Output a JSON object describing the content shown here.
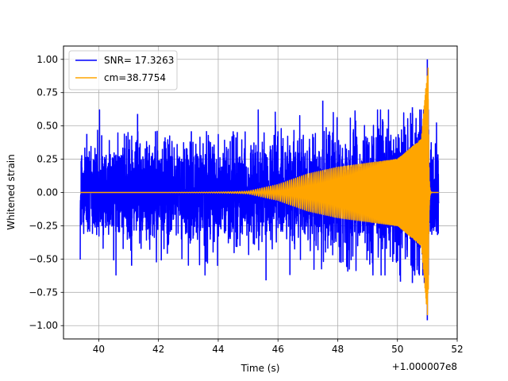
{
  "chart_data": {
    "type": "line",
    "xlabel": "Time (s)",
    "ylabel": "Whitened strain",
    "x_offset_label": "+1.000007e8",
    "xlim": [
      38.82,
      52.0
    ],
    "ylim": [
      -1.1,
      1.1
    ],
    "xticks": [
      40,
      42,
      44,
      46,
      48,
      50,
      52
    ],
    "yticks": [
      -1.0,
      -0.75,
      -0.5,
      -0.25,
      0.0,
      0.25,
      0.5,
      0.75,
      1.0
    ],
    "ytick_labels": [
      "−1.00",
      "−0.75",
      "−0.50",
      "−0.25",
      "0.00",
      "0.25",
      "0.50",
      "0.75",
      "1.00"
    ],
    "grid": true,
    "legend_position": "upper-left",
    "series": [
      {
        "name": "SNR= 17.3263",
        "color": "#0000ff",
        "x_range": [
          39.38,
          51.38
        ],
        "noise_amplitude": 0.33,
        "peaks": [
          {
            "x": 39.6,
            "y": 0.44
          },
          {
            "x": 40.1,
            "y": 0.43
          },
          {
            "x": 41.3,
            "y": 0.59
          },
          {
            "x": 41.9,
            "y": 0.46
          },
          {
            "x": 43.1,
            "y": 0.46
          },
          {
            "x": 44.5,
            "y": 0.46
          },
          {
            "x": 46.0,
            "y": 0.46
          },
          {
            "x": 47.5,
            "y": 0.69
          },
          {
            "x": 48.6,
            "y": 0.54
          },
          {
            "x": 49.5,
            "y": 0.55
          },
          {
            "x": 50.5,
            "y": 0.64
          },
          {
            "x": 51.0,
            "y": 1.0
          }
        ],
        "troughs": [
          {
            "x": 40.5,
            "y": -0.51
          },
          {
            "x": 41.1,
            "y": -0.55
          },
          {
            "x": 43.6,
            "y": -0.52
          },
          {
            "x": 45.6,
            "y": -0.66
          },
          {
            "x": 46.4,
            "y": -0.62
          },
          {
            "x": 48.3,
            "y": -0.56
          },
          {
            "x": 50.1,
            "y": -0.67
          },
          {
            "x": 50.5,
            "y": -0.68
          },
          {
            "x": 50.9,
            "y": -0.68
          },
          {
            "x": 51.0,
            "y": -0.96
          }
        ]
      },
      {
        "name": "cm=38.7754",
        "color": "#ffa500",
        "model": "chirp",
        "merger_time": 51.03,
        "peak_amplitude": 1.0,
        "frequency_at_49s": 20,
        "post_merger_until": 51.38,
        "envelope_samples": [
          {
            "t": 45.0,
            "amplitude": 0.01
          },
          {
            "t": 46.0,
            "amplitude": 0.06
          },
          {
            "t": 47.0,
            "amplitude": 0.14
          },
          {
            "t": 48.0,
            "amplitude": 0.19
          },
          {
            "t": 49.0,
            "amplitude": 0.22
          },
          {
            "t": 50.0,
            "amplitude": 0.25
          },
          {
            "t": 50.8,
            "amplitude": 0.4
          },
          {
            "t": 51.03,
            "amplitude": 1.0
          }
        ]
      }
    ]
  }
}
